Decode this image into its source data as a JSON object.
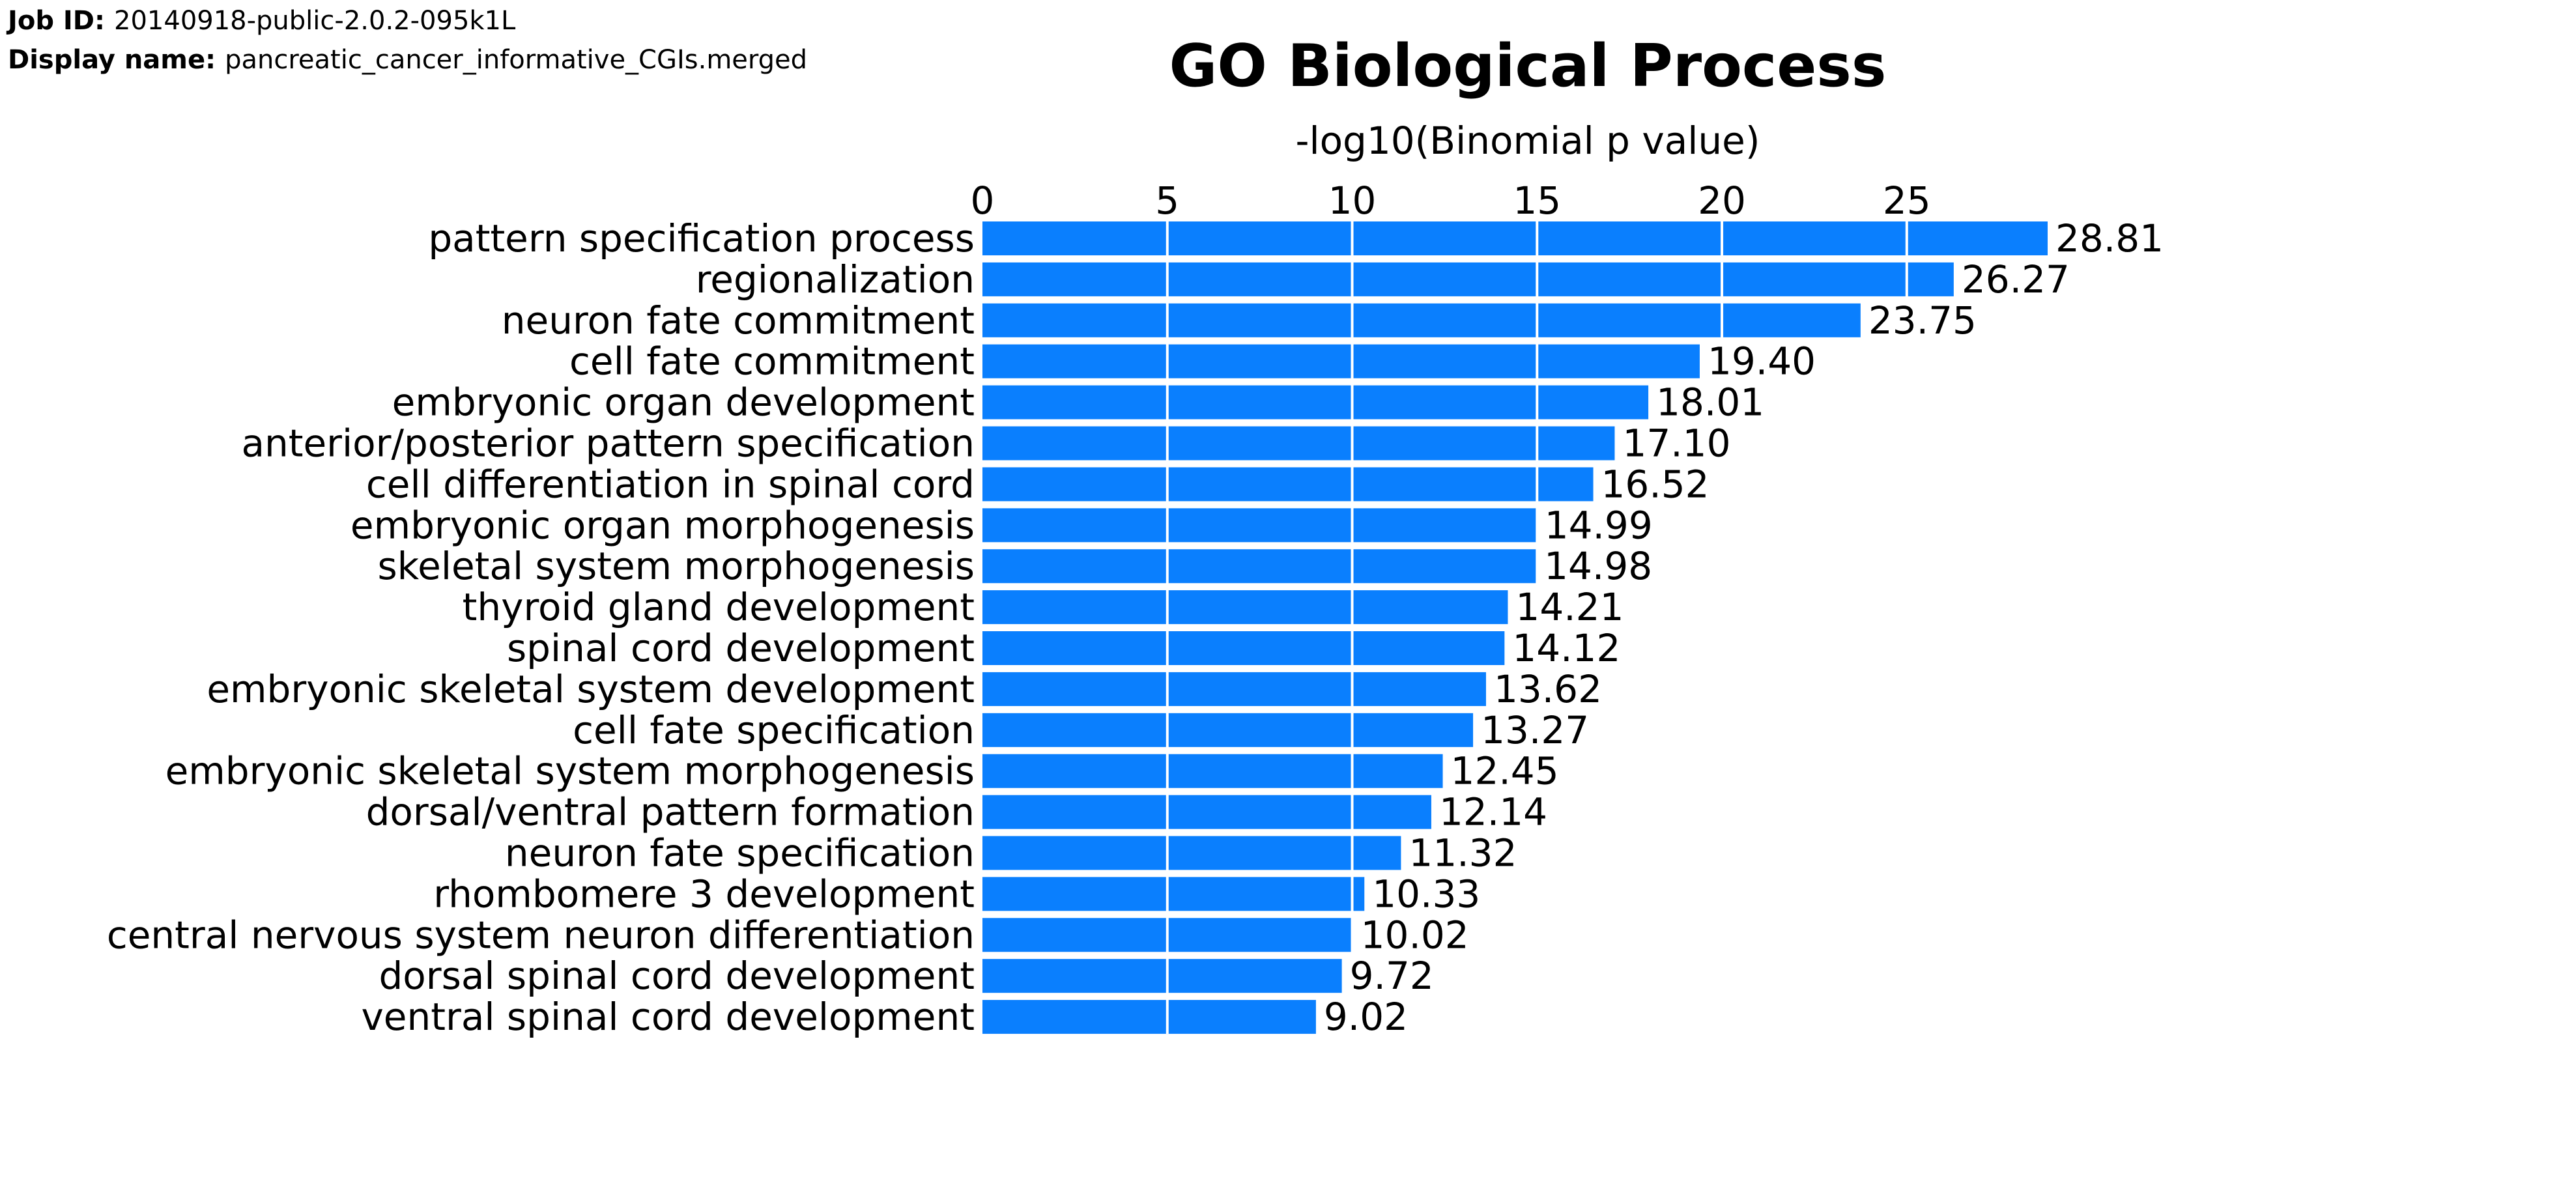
{
  "job": {
    "job_id_label": "Job ID:",
    "job_id_value": "20140918-public-2.0.2-095k1L",
    "display_name_label": "Display name:",
    "display_name_value": "pancreatic_cancer_informative_CGIs.merged"
  },
  "chart_data": {
    "type": "bar",
    "orientation": "horizontal",
    "title": "GO Biological Process",
    "xlabel": "-log10(Binomial p value)",
    "ylabel": "",
    "xlim": [
      0,
      28.81
    ],
    "xticks": [
      0,
      5,
      10,
      15,
      20,
      25
    ],
    "grid": true,
    "bar_color": "#0a7ffe",
    "grid_color": "#ffffff",
    "categories": [
      "pattern specification process",
      "regionalization",
      "neuron fate commitment",
      "cell fate commitment",
      "embryonic organ development",
      "anterior/posterior pattern specification",
      "cell differentiation in spinal cord",
      "embryonic organ morphogenesis",
      "skeletal system morphogenesis",
      "thyroid gland development",
      "spinal cord development",
      "embryonic skeletal system development",
      "cell fate specification",
      "embryonic skeletal system morphogenesis",
      "dorsal/ventral pattern formation",
      "neuron fate specification",
      "rhombomere 3 development",
      "central nervous system neuron differentiation",
      "dorsal spinal cord development",
      "ventral spinal cord development"
    ],
    "values": [
      28.81,
      26.27,
      23.75,
      19.4,
      18.01,
      17.1,
      16.52,
      14.99,
      14.98,
      14.21,
      14.12,
      13.62,
      13.27,
      12.45,
      12.14,
      11.32,
      10.33,
      10.02,
      9.72,
      9.02
    ],
    "value_labels": [
      "28.81",
      "26.27",
      "23.75",
      "19.40",
      "18.01",
      "17.10",
      "16.52",
      "14.99",
      "14.98",
      "14.21",
      "14.12",
      "13.62",
      "13.27",
      "12.45",
      "12.14",
      "11.32",
      "10.33",
      "10.02",
      "9.72",
      "9.02"
    ]
  }
}
